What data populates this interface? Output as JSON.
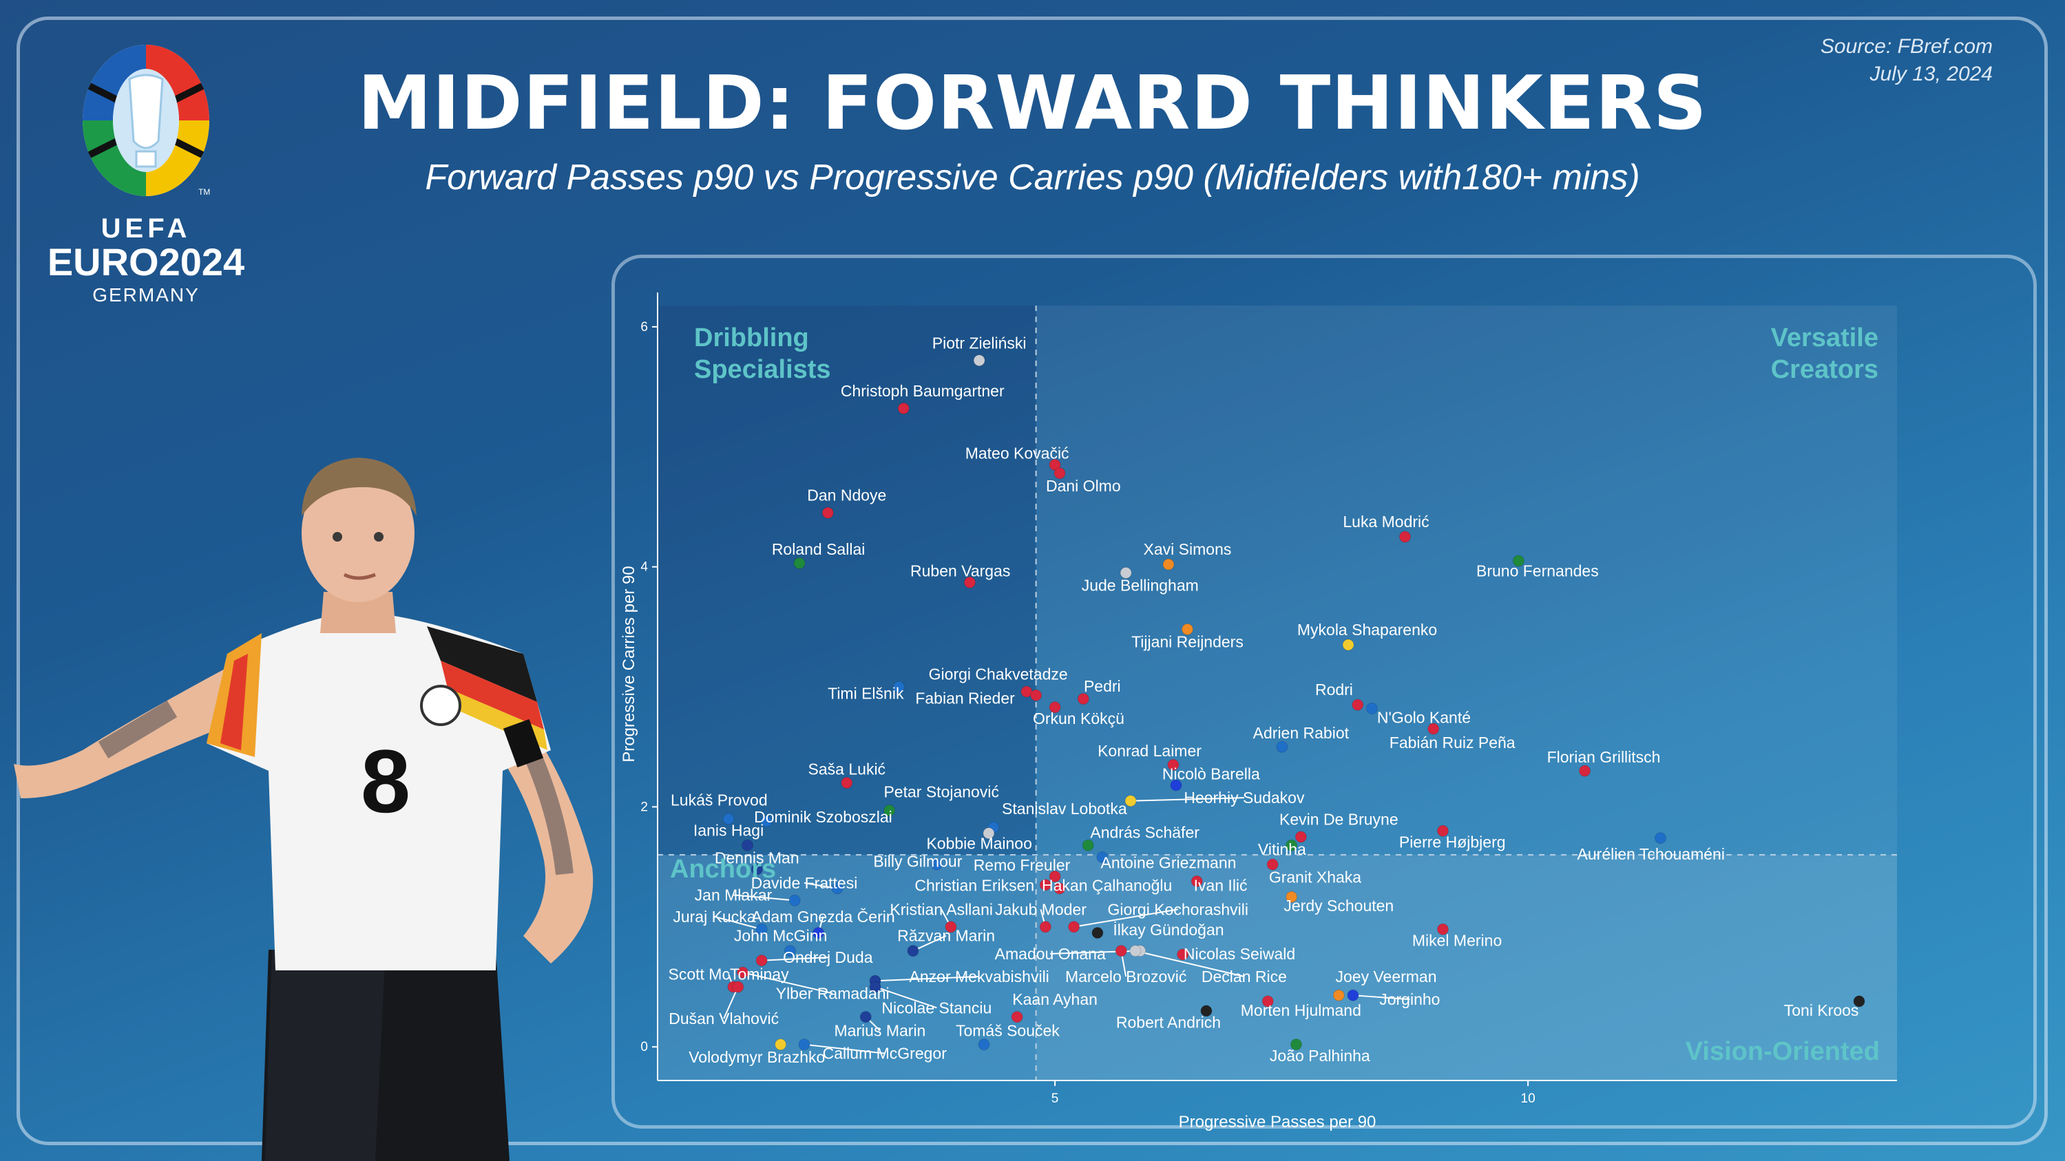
{
  "header": {
    "title": "MIDFIELD: FORWARD THINKERS",
    "subtitle": "Forward Passes p90 vs Progressive Carries p90 (Midfielders with180+ mins)",
    "source": "Source: FBref.com",
    "date": "July 13, 2024"
  },
  "logo": {
    "brand_top": "UEFA",
    "brand_main": "EURO2024",
    "brand_sub": "GERMANY",
    "trademark": "TM"
  },
  "player_image": {
    "shirt_number": "8"
  },
  "chart_data": {
    "type": "scatter",
    "xlabel": "Progressive Passes per 90",
    "ylabel": "Progressive Carries per 90",
    "xlim": [
      0.8,
      13.9
    ],
    "ylim": [
      -0.28,
      6.2
    ],
    "xticks": [
      5,
      10
    ],
    "yticks": [
      0,
      2,
      4,
      6
    ],
    "x_divider": 4.8,
    "y_divider": 1.6,
    "quadrants": {
      "top_left": "Dribbling Specialists",
      "top_right": "Versatile Creators",
      "bottom_left": "Anchors",
      "bottom_right": "Vision-Oriented"
    },
    "colors": {
      "quadrant_label": "#5ec4c8",
      "text": "#ffffff",
      "axis": "#ffffff",
      "divider": "#b9cfe2"
    },
    "points": [
      {
        "name": "Piotr Zieliński",
        "x": 4.2,
        "y": 5.72,
        "color": "#c9cdd3",
        "lx": 4.2,
        "ly": 5.82,
        "anchor": "middle"
      },
      {
        "name": "Christoph Baumgartner",
        "x": 3.4,
        "y": 5.32,
        "color": "#d7263d",
        "lx": 3.6,
        "ly": 5.42,
        "anchor": "middle"
      },
      {
        "name": "Mateo Kovačić",
        "x": 5.0,
        "y": 4.85,
        "color": "#d7263d",
        "lx": 4.6,
        "ly": 4.9,
        "anchor": "middle"
      },
      {
        "name": "Dani Olmo",
        "x": 5.05,
        "y": 4.78,
        "color": "#d7263d",
        "lx": 5.3,
        "ly": 4.63,
        "anchor": "middle"
      },
      {
        "name": "Dan Ndoye",
        "x": 2.6,
        "y": 4.45,
        "color": "#d7263d",
        "lx": 2.8,
        "ly": 4.55,
        "anchor": "middle"
      },
      {
        "name": "Luka Modrić",
        "x": 8.7,
        "y": 4.25,
        "color": "#d7263d",
        "lx": 8.5,
        "ly": 4.33,
        "anchor": "middle"
      },
      {
        "name": "Roland Sallai",
        "x": 2.3,
        "y": 4.03,
        "color": "#1f8a3c",
        "lx": 2.5,
        "ly": 4.1,
        "anchor": "middle"
      },
      {
        "name": "Bruno Fernandes",
        "x": 9.9,
        "y": 4.05,
        "color": "#1f8a3c",
        "lx": 10.1,
        "ly": 3.92,
        "anchor": "middle"
      },
      {
        "name": "Xavi Simons",
        "x": 6.2,
        "y": 4.02,
        "color": "#f08a24",
        "lx": 6.4,
        "ly": 4.1,
        "anchor": "middle"
      },
      {
        "name": "Ruben Vargas",
        "x": 4.1,
        "y": 3.87,
        "color": "#d7263d",
        "lx": 4.0,
        "ly": 3.92,
        "anchor": "middle"
      },
      {
        "name": "Jude Bellingham",
        "x": 5.75,
        "y": 3.95,
        "color": "#c9cdd3",
        "lx": 5.9,
        "ly": 3.8,
        "anchor": "middle"
      },
      {
        "name": "Tijjani Reijnders",
        "x": 6.4,
        "y": 3.48,
        "color": "#f08a24",
        "lx": 6.4,
        "ly": 3.33,
        "anchor": "middle"
      },
      {
        "name": "Mykola Shaparenko",
        "x": 8.1,
        "y": 3.35,
        "color": "#f2cc2e",
        "lx": 8.3,
        "ly": 3.43,
        "anchor": "middle"
      },
      {
        "name": "Timi Elšnik",
        "x": 3.35,
        "y": 3.0,
        "color": "#1f6fc9",
        "lx": 3.0,
        "ly": 2.9,
        "anchor": "middle"
      },
      {
        "name": "Giorgi Chakvetadze",
        "x": 4.7,
        "y": 2.96,
        "color": "#d7263d",
        "lx": 4.4,
        "ly": 3.06,
        "anchor": "middle"
      },
      {
        "name": "Fabian Rieder",
        "x": 4.8,
        "y": 2.93,
        "color": "#d7263d",
        "lx": 4.05,
        "ly": 2.86,
        "anchor": "middle"
      },
      {
        "name": "Pedri",
        "x": 5.3,
        "y": 2.9,
        "color": "#d7263d",
        "lx": 5.5,
        "ly": 2.96,
        "anchor": "middle"
      },
      {
        "name": "Orkun Kökçü",
        "x": 5.0,
        "y": 2.83,
        "color": "#d7263d",
        "lx": 5.25,
        "ly": 2.69,
        "anchor": "middle"
      },
      {
        "name": "Rodri",
        "x": 8.2,
        "y": 2.85,
        "color": "#d7263d",
        "lx": 7.95,
        "ly": 2.93,
        "anchor": "middle"
      },
      {
        "name": "N'Golo Kanté",
        "x": 8.35,
        "y": 2.82,
        "color": "#1f6fc9",
        "lx": 8.9,
        "ly": 2.7,
        "anchor": "middle"
      },
      {
        "name": "Fabián Ruiz Peña",
        "x": 9.0,
        "y": 2.65,
        "color": "#d7263d",
        "lx": 9.2,
        "ly": 2.49,
        "anchor": "middle"
      },
      {
        "name": "Adrien Rabiot",
        "x": 7.4,
        "y": 2.5,
        "color": "#1f6fc9",
        "lx": 7.6,
        "ly": 2.57,
        "anchor": "middle"
      },
      {
        "name": "Florian Grillitsch",
        "x": 10.6,
        "y": 2.3,
        "color": "#d7263d",
        "lx": 10.8,
        "ly": 2.37,
        "anchor": "middle"
      },
      {
        "name": "Konrad Laimer",
        "x": 6.25,
        "y": 2.35,
        "color": "#d7263d",
        "lx": 6.0,
        "ly": 2.42,
        "anchor": "middle"
      },
      {
        "name": "Nicolò Barella",
        "x": 6.28,
        "y": 2.18,
        "color": "#1f3fd9",
        "lx": 6.65,
        "ly": 2.23,
        "anchor": "middle"
      },
      {
        "name": "Heorhiy Sudakov",
        "x": 5.8,
        "y": 2.05,
        "color": "#f2cc2e",
        "lx": 7.0,
        "ly": 2.03,
        "anchor": "middle",
        "leader": true
      },
      {
        "name": "Saša Lukić",
        "x": 2.8,
        "y": 2.2,
        "color": "#d7263d",
        "lx": 2.8,
        "ly": 2.27,
        "anchor": "middle"
      },
      {
        "name": "Petar Stojanović",
        "x": 3.25,
        "y": 1.97,
        "color": "#1f8a3c",
        "lx": 3.8,
        "ly": 2.08,
        "anchor": "middle"
      },
      {
        "name": "Lukáš Provod",
        "x": 1.55,
        "y": 1.9,
        "color": "#1f6fc9",
        "lx": 1.45,
        "ly": 2.01,
        "anchor": "middle"
      },
      {
        "name": "Dominik Szoboszlai",
        "x": 1.95,
        "y": 1.88,
        "color": "#1f6fc9",
        "lx": 2.55,
        "ly": 1.87,
        "anchor": "middle"
      },
      {
        "name": "Stanislav Lobotka",
        "x": 4.35,
        "y": 1.83,
        "color": "#1f6fc9",
        "lx": 5.1,
        "ly": 1.94,
        "anchor": "middle"
      },
      {
        "name": "Ianis Hagi",
        "x": 1.75,
        "y": 1.68,
        "color": "#1f3f99",
        "lx": 1.55,
        "ly": 1.76,
        "anchor": "middle"
      },
      {
        "name": "Kobbie Mainoo",
        "x": 4.3,
        "y": 1.78,
        "color": "#c9cdd3",
        "lx": 4.2,
        "ly": 1.65,
        "anchor": "middle"
      },
      {
        "name": "András Schäfer",
        "x": 5.35,
        "y": 1.68,
        "color": "#1f8a3c",
        "lx": 5.95,
        "ly": 1.74,
        "anchor": "middle"
      },
      {
        "name": "Kevin De Bruyne",
        "x": 7.5,
        "y": 1.68,
        "color": "#1f8a3c",
        "lx": 8.0,
        "ly": 1.85,
        "anchor": "middle"
      },
      {
        "name": "Vitinha",
        "x": 7.6,
        "y": 1.75,
        "color": "#d7263d",
        "lx": 7.4,
        "ly": 1.6,
        "anchor": "middle"
      },
      {
        "name": "Pierre Højbjerg",
        "x": 9.1,
        "y": 1.8,
        "color": "#d7263d",
        "lx": 9.2,
        "ly": 1.66,
        "anchor": "middle"
      },
      {
        "name": "Aurélien Tchouaméni",
        "x": 11.4,
        "y": 1.74,
        "color": "#1f6fc9",
        "lx": 11.3,
        "ly": 1.56,
        "anchor": "middle"
      },
      {
        "name": "Dennis Man",
        "x": 1.85,
        "y": 1.48,
        "color": "#1f3f99",
        "lx": 1.85,
        "ly": 1.53,
        "anchor": "middle"
      },
      {
        "name": "Billy Gilmour",
        "x": 3.75,
        "y": 1.52,
        "color": "#1f6fc9",
        "lx": 3.55,
        "ly": 1.5,
        "anchor": "middle"
      },
      {
        "name": "Remo Freuler",
        "x": 5.0,
        "y": 1.42,
        "color": "#d7263d",
        "lx": 4.65,
        "ly": 1.47,
        "anchor": "middle"
      },
      {
        "name": "Antoine Griezmann",
        "x": 5.5,
        "y": 1.58,
        "color": "#1f6fc9",
        "lx": 6.2,
        "ly": 1.49,
        "anchor": "middle"
      },
      {
        "name": "Granit Xhaka",
        "x": 7.3,
        "y": 1.52,
        "color": "#d7263d",
        "lx": 7.75,
        "ly": 1.37,
        "anchor": "middle"
      },
      {
        "name": "Davide Frattesi",
        "x": 2.7,
        "y": 1.32,
        "color": "#1f6fc9",
        "lx": 2.35,
        "ly": 1.32,
        "anchor": "middle",
        "leader": true
      },
      {
        "name": "Christian Eriksen",
        "x": 4.9,
        "y": 1.35,
        "color": "#d7263d",
        "lx": 4.15,
        "ly": 1.3,
        "anchor": "middle"
      },
      {
        "name": "Hakan Çalhanoğlu",
        "x": 5.05,
        "y": 1.32,
        "color": "#d7263d",
        "lx": 5.55,
        "ly": 1.3,
        "anchor": "middle"
      },
      {
        "name": "Ivan Ilić",
        "x": 6.5,
        "y": 1.38,
        "color": "#d7263d",
        "lx": 6.75,
        "ly": 1.3,
        "anchor": "middle"
      },
      {
        "name": "Jan Mlakar",
        "x": 2.25,
        "y": 1.22,
        "color": "#1f6fc9",
        "lx": 1.6,
        "ly": 1.22,
        "anchor": "middle",
        "leader": true
      },
      {
        "name": "Jerdy Schouten",
        "x": 7.5,
        "y": 1.25,
        "color": "#f08a24",
        "lx": 8.0,
        "ly": 1.13,
        "anchor": "middle"
      },
      {
        "name": "Juraj Kucka",
        "x": 1.9,
        "y": 0.98,
        "color": "#1f6fc9",
        "lx": 1.4,
        "ly": 1.04,
        "anchor": "middle",
        "leader": true
      },
      {
        "name": "Adam Gnezda Čerin",
        "x": 2.5,
        "y": 0.95,
        "color": "#1f3fd9",
        "lx": 2.55,
        "ly": 1.04,
        "anchor": "middle",
        "leader": true
      },
      {
        "name": "Kristian Asllani",
        "x": 3.9,
        "y": 1.0,
        "color": "#d7263d",
        "lx": 3.8,
        "ly": 1.1,
        "anchor": "middle",
        "leader": true
      },
      {
        "name": "Jakub Moder",
        "x": 4.9,
        "y": 1.0,
        "color": "#d7263d",
        "lx": 4.85,
        "ly": 1.1,
        "anchor": "middle",
        "leader": true
      },
      {
        "name": "Giorgi Kochorashvili",
        "x": 5.2,
        "y": 1.0,
        "color": "#d7263d",
        "lx": 6.3,
        "ly": 1.1,
        "anchor": "middle",
        "leader": true
      },
      {
        "name": "Mikel Merino",
        "x": 9.1,
        "y": 0.98,
        "color": "#d7263d",
        "lx": 9.25,
        "ly": 0.84,
        "anchor": "middle"
      },
      {
        "name": "John McGinn",
        "x": 2.2,
        "y": 0.8,
        "color": "#1f6fc9",
        "lx": 2.1,
        "ly": 0.88,
        "anchor": "middle"
      },
      {
        "name": "Răzvan Marin",
        "x": 3.5,
        "y": 0.8,
        "color": "#1f3f99",
        "lx": 3.85,
        "ly": 0.88,
        "anchor": "middle",
        "leader": true
      },
      {
        "name": "İlkay Gündoğan",
        "x": 5.45,
        "y": 0.95,
        "color": "#222222",
        "lx": 6.2,
        "ly": 0.93,
        "anchor": "middle"
      },
      {
        "name": "Ondrej Duda",
        "x": 1.9,
        "y": 0.72,
        "color": "#d7263d",
        "lx": 2.6,
        "ly": 0.7,
        "anchor": "middle",
        "leader": true
      },
      {
        "name": "Amadou Onana",
        "x": 5.9,
        "y": 0.8,
        "color": "#c9cdd3",
        "lx": 4.95,
        "ly": 0.73,
        "anchor": "middle",
        "leader": true
      },
      {
        "name": "Nicolas Seiwald",
        "x": 6.35,
        "y": 0.77,
        "color": "#d7263d",
        "lx": 6.95,
        "ly": 0.73,
        "anchor": "middle"
      },
      {
        "name": "Scott McTominay",
        "x": 1.6,
        "y": 0.5,
        "color": "#d7263d",
        "lx": 1.55,
        "ly": 0.56,
        "anchor": "middle",
        "leader": true
      },
      {
        "name": "Anzor Mekvabishvili",
        "x": 3.1,
        "y": 0.55,
        "color": "#1f3f99",
        "lx": 4.2,
        "ly": 0.54,
        "anchor": "middle",
        "leader": true
      },
      {
        "name": "Marcelo Brozović",
        "x": 5.7,
        "y": 0.8,
        "color": "#d7263d",
        "lx": 5.75,
        "ly": 0.54,
        "anchor": "middle",
        "leader": true
      },
      {
        "name": "Declan Rice",
        "x": 5.85,
        "y": 0.8,
        "color": "#c9cdd3",
        "lx": 7.0,
        "ly": 0.54,
        "anchor": "middle",
        "leader": true
      },
      {
        "name": "Joey Veerman",
        "x": 8.0,
        "y": 0.43,
        "color": "#f08a24",
        "lx": 8.5,
        "ly": 0.54,
        "anchor": "middle"
      },
      {
        "name": "Ylber Ramadani",
        "x": 1.7,
        "y": 0.62,
        "color": "#d7263d",
        "lx": 2.65,
        "ly": 0.4,
        "anchor": "middle",
        "leader": true
      },
      {
        "name": "Jorginho",
        "x": 8.15,
        "y": 0.43,
        "color": "#1f3fd9",
        "lx": 8.75,
        "ly": 0.35,
        "anchor": "middle",
        "leader": true
      },
      {
        "name": "Nicolae Stanciu",
        "x": 3.1,
        "y": 0.5,
        "color": "#1f3f99",
        "lx": 3.75,
        "ly": 0.28,
        "anchor": "middle",
        "leader": true
      },
      {
        "name": "Kaan Ayhan",
        "x": 4.6,
        "y": 0.25,
        "color": "#d7263d",
        "lx": 5.0,
        "ly": 0.35,
        "anchor": "middle"
      },
      {
        "name": "Morten Hjulmand",
        "x": 7.25,
        "y": 0.38,
        "color": "#d7263d",
        "lx": 7.6,
        "ly": 0.26,
        "anchor": "middle"
      },
      {
        "name": "Robert Andrich",
        "x": 6.6,
        "y": 0.3,
        "color": "#222222",
        "lx": 6.2,
        "ly": 0.16,
        "anchor": "middle"
      },
      {
        "name": "Toni Kroos",
        "x": 13.5,
        "y": 0.38,
        "color": "#222222",
        "lx": 13.1,
        "ly": 0.26,
        "anchor": "middle"
      },
      {
        "name": "Dušan Vlahović",
        "x": 1.65,
        "y": 0.5,
        "color": "#d7263d",
        "lx": 1.5,
        "ly": 0.19,
        "anchor": "middle",
        "leader": true
      },
      {
        "name": "Marius Marin",
        "x": 3.0,
        "y": 0.25,
        "color": "#1f3f99",
        "lx": 3.15,
        "ly": 0.09,
        "anchor": "middle",
        "leader": true
      },
      {
        "name": "Tomáš Souček",
        "x": 4.25,
        "y": 0.02,
        "color": "#1f6fc9",
        "lx": 4.5,
        "ly": 0.09,
        "anchor": "middle"
      },
      {
        "name": "Volodymyr Brazhko",
        "x": 2.1,
        "y": 0.02,
        "color": "#f2cc2e",
        "lx": 1.85,
        "ly": -0.13,
        "anchor": "middle"
      },
      {
        "name": "Callum McGregor",
        "x": 2.35,
        "y": 0.02,
        "color": "#1f6fc9",
        "lx": 3.2,
        "ly": -0.1,
        "anchor": "middle",
        "leader": true
      },
      {
        "name": "João Palhinha",
        "x": 7.55,
        "y": 0.02,
        "color": "#1f8a3c",
        "lx": 7.8,
        "ly": -0.12,
        "anchor": "middle"
      }
    ]
  }
}
